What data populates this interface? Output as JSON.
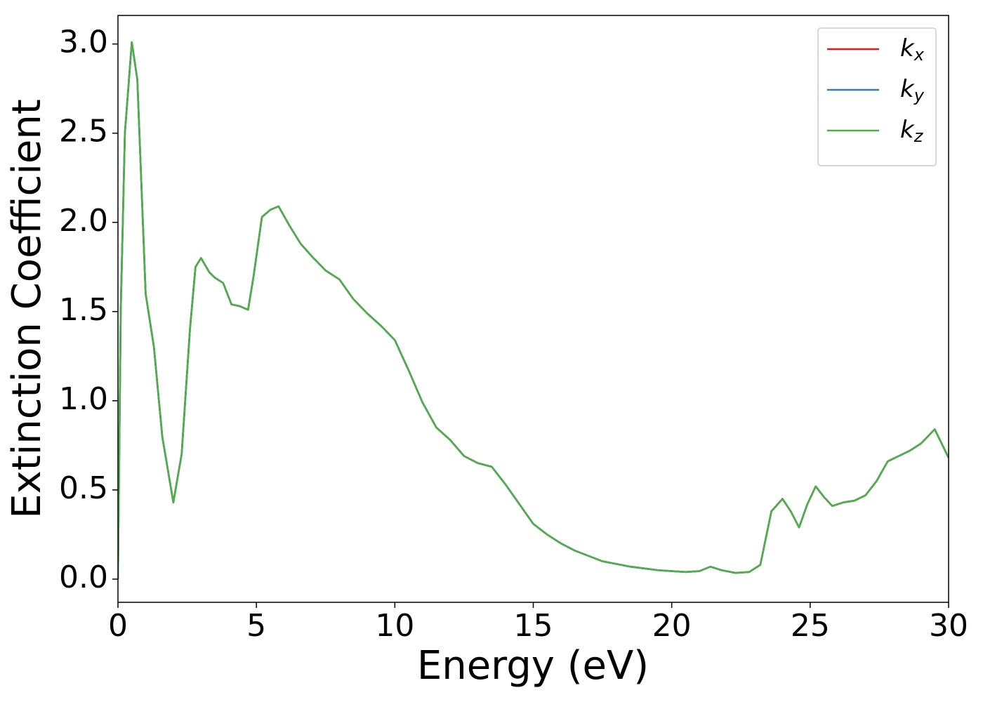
{
  "chart_data": {
    "type": "line",
    "xlabel": "Energy (eV)",
    "ylabel": "Extinction Coefficient",
    "xlim": [
      0,
      30
    ],
    "ylim": [
      -0.13,
      3.16
    ],
    "xticks": [
      0,
      5,
      10,
      15,
      20,
      25,
      30
    ],
    "yticks": [
      {
        "value": 0,
        "label": "0.0"
      },
      {
        "value": 0.5,
        "label": "0.5"
      },
      {
        "value": 1,
        "label": "1.0"
      },
      {
        "value": 1.5,
        "label": "1.5"
      },
      {
        "value": 2,
        "label": "2.0"
      },
      {
        "value": 2.5,
        "label": "2.5"
      },
      {
        "value": 3,
        "label": "3.0"
      }
    ],
    "legend": "upper right",
    "x": [
      0,
      0.1,
      0.25,
      0.5,
      0.7,
      1.0,
      1.3,
      1.6,
      2.0,
      2.3,
      2.6,
      2.8,
      3.0,
      3.3,
      3.5,
      3.8,
      4.1,
      4.4,
      4.7,
      4.9,
      5.2,
      5.5,
      5.8,
      6.2,
      6.6,
      7.0,
      7.5,
      8.0,
      8.5,
      9.0,
      9.5,
      10.0,
      10.5,
      11.0,
      11.5,
      12.0,
      12.5,
      13.0,
      13.5,
      14.0,
      14.5,
      15.0,
      15.5,
      16.0,
      16.5,
      17.0,
      17.5,
      18.0,
      18.5,
      19.0,
      19.5,
      20.0,
      20.5,
      21.0,
      21.4,
      21.8,
      22.3,
      22.8,
      23.2,
      23.6,
      24.0,
      24.3,
      24.6,
      24.9,
      25.2,
      25.5,
      25.8,
      26.2,
      26.6,
      27.0,
      27.4,
      27.8,
      28.2,
      28.6,
      29.0,
      29.5,
      30.0
    ],
    "series": [
      {
        "name": "kx",
        "color": "#e41a1c",
        "values": [
          0,
          1.5,
          2.5,
          3.01,
          2.8,
          1.6,
          1.3,
          0.8,
          0.43,
          0.7,
          1.4,
          1.75,
          1.8,
          1.72,
          1.69,
          1.66,
          1.54,
          1.53,
          1.51,
          1.7,
          2.03,
          2.07,
          2.09,
          1.98,
          1.88,
          1.81,
          1.73,
          1.68,
          1.57,
          1.49,
          1.42,
          1.34,
          1.17,
          0.99,
          0.85,
          0.78,
          0.69,
          0.65,
          0.63,
          0.53,
          0.42,
          0.31,
          0.25,
          0.2,
          0.16,
          0.13,
          0.1,
          0.085,
          0.07,
          0.06,
          0.05,
          0.045,
          0.04,
          0.045,
          0.07,
          0.05,
          0.035,
          0.04,
          0.08,
          0.38,
          0.45,
          0.38,
          0.29,
          0.42,
          0.52,
          0.46,
          0.41,
          0.43,
          0.44,
          0.47,
          0.55,
          0.66,
          0.69,
          0.72,
          0.76,
          0.84,
          0.68
        ]
      },
      {
        "name": "ky",
        "color": "#377eb8",
        "values": [
          0,
          1.5,
          2.5,
          3.01,
          2.8,
          1.6,
          1.3,
          0.8,
          0.43,
          0.7,
          1.4,
          1.75,
          1.8,
          1.72,
          1.69,
          1.66,
          1.54,
          1.53,
          1.51,
          1.7,
          2.03,
          2.07,
          2.09,
          1.98,
          1.88,
          1.81,
          1.73,
          1.68,
          1.57,
          1.49,
          1.42,
          1.34,
          1.17,
          0.99,
          0.85,
          0.78,
          0.69,
          0.65,
          0.63,
          0.53,
          0.42,
          0.31,
          0.25,
          0.2,
          0.16,
          0.13,
          0.1,
          0.085,
          0.07,
          0.06,
          0.05,
          0.045,
          0.04,
          0.045,
          0.07,
          0.05,
          0.035,
          0.04,
          0.08,
          0.38,
          0.45,
          0.38,
          0.29,
          0.42,
          0.52,
          0.46,
          0.41,
          0.43,
          0.44,
          0.47,
          0.55,
          0.66,
          0.69,
          0.72,
          0.76,
          0.84,
          0.68
        ]
      },
      {
        "name": "kz",
        "color": "#4daf4a",
        "values": [
          0,
          1.5,
          2.5,
          3.01,
          2.8,
          1.6,
          1.3,
          0.8,
          0.43,
          0.7,
          1.4,
          1.75,
          1.8,
          1.72,
          1.69,
          1.66,
          1.54,
          1.53,
          1.51,
          1.7,
          2.03,
          2.07,
          2.09,
          1.98,
          1.88,
          1.81,
          1.73,
          1.68,
          1.57,
          1.49,
          1.42,
          1.34,
          1.17,
          0.99,
          0.85,
          0.78,
          0.69,
          0.65,
          0.63,
          0.53,
          0.42,
          0.31,
          0.25,
          0.2,
          0.16,
          0.13,
          0.1,
          0.085,
          0.07,
          0.06,
          0.05,
          0.045,
          0.04,
          0.045,
          0.07,
          0.05,
          0.035,
          0.04,
          0.08,
          0.38,
          0.45,
          0.38,
          0.29,
          0.42,
          0.52,
          0.46,
          0.41,
          0.43,
          0.44,
          0.47,
          0.55,
          0.66,
          0.69,
          0.72,
          0.76,
          0.84,
          0.68
        ]
      }
    ]
  }
}
